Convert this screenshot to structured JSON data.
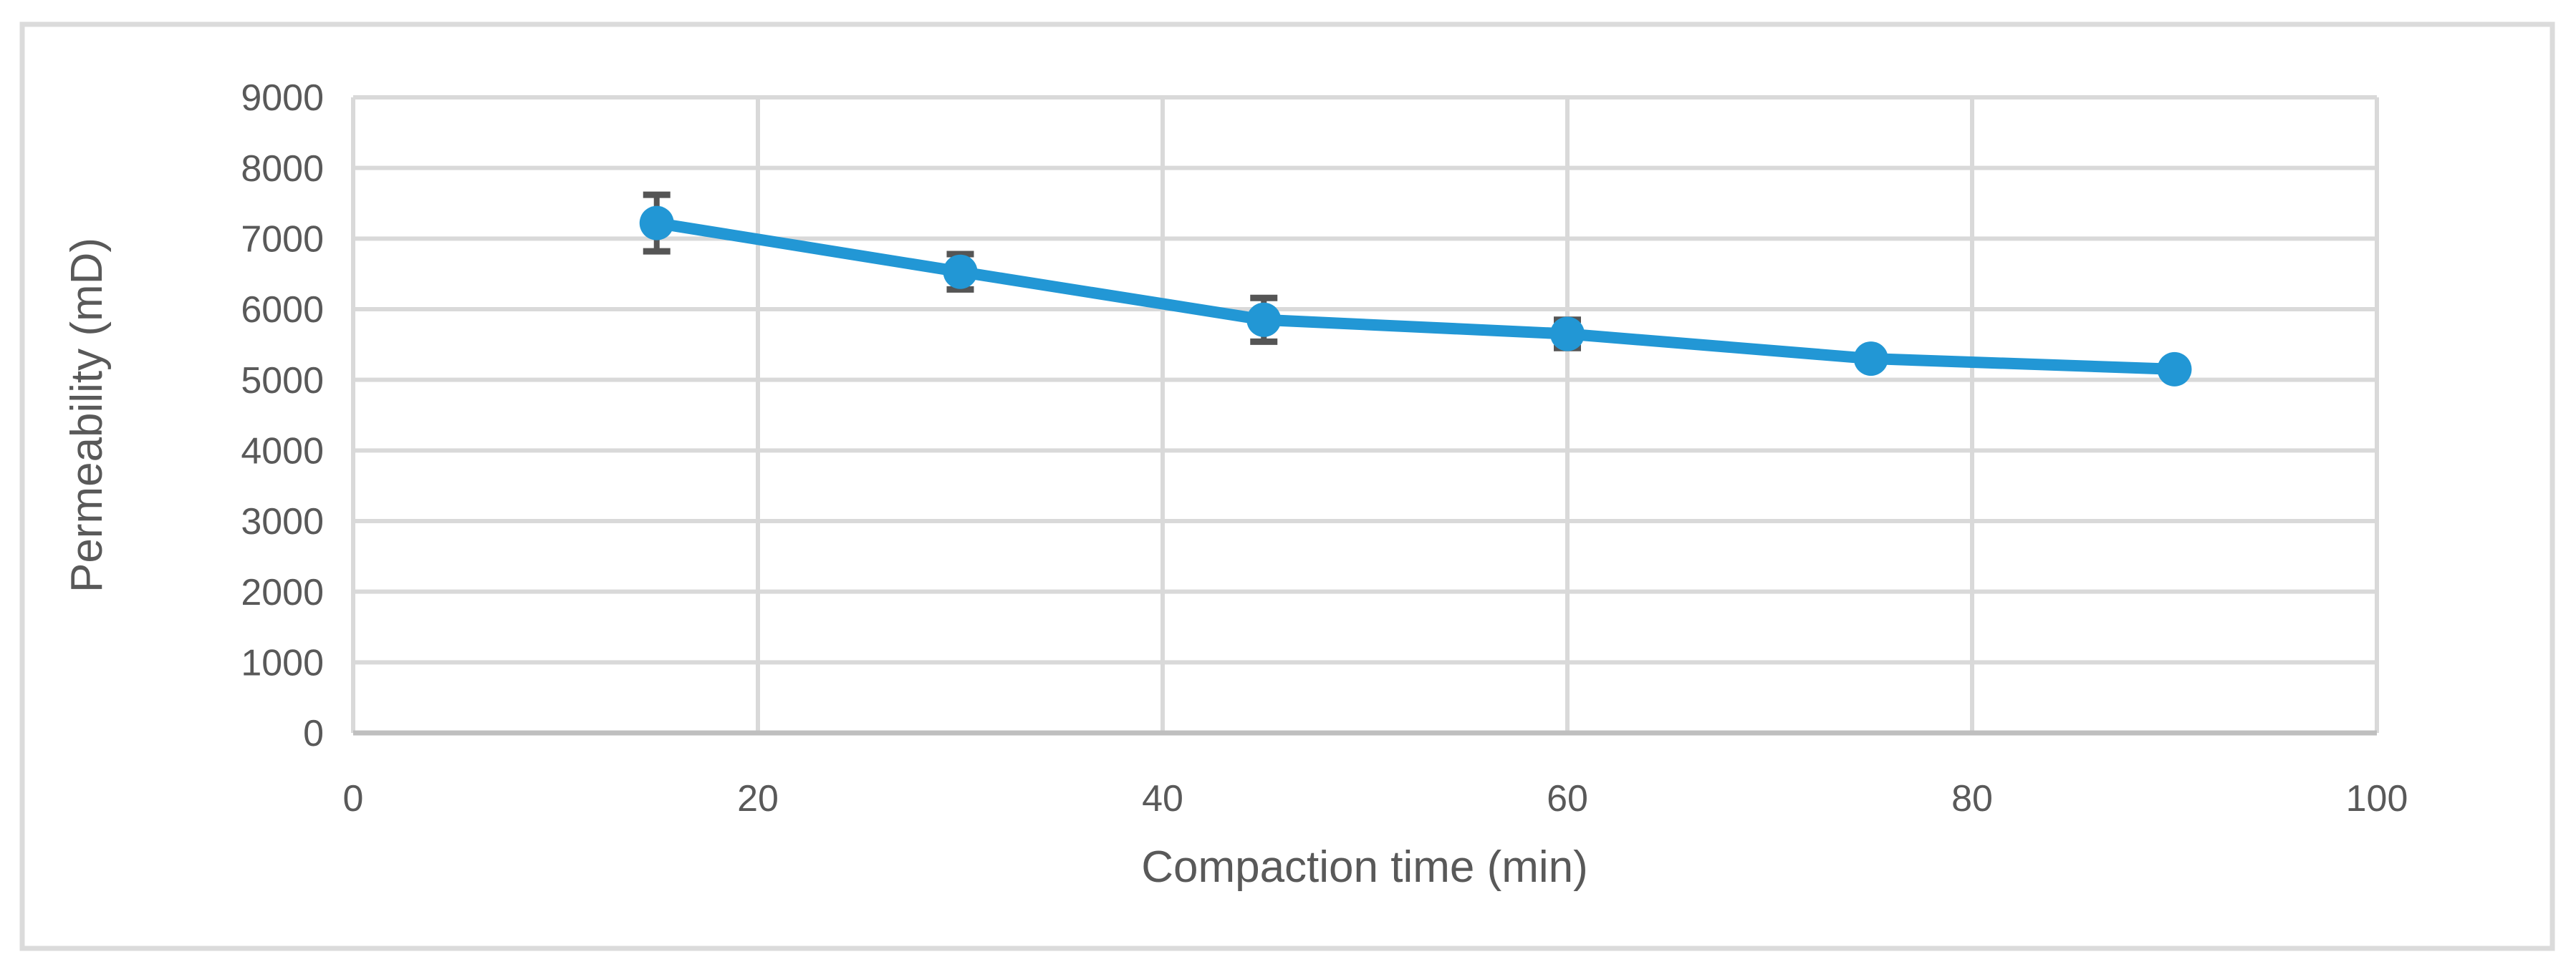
{
  "figure": {
    "background": "#ffffff",
    "border_color": "#dbdbdb"
  },
  "chart_data": {
    "type": "line",
    "title": "",
    "xlabel": "Compaction time (min)",
    "ylabel": "Permeability (mD)",
    "x": [
      15,
      30,
      45,
      60,
      75,
      90
    ],
    "series": [
      {
        "name": "Permeability (mD)",
        "values": [
          7220,
          6530,
          5850,
          5650,
          5300,
          5150
        ],
        "error_bars_plus_minus": [
          400,
          250,
          310,
          200,
          0,
          0
        ],
        "line_color": "#2297d5",
        "marker": "circle",
        "marker_color": "#2297d5",
        "error_bar_color": "#555555"
      }
    ],
    "xlim": [
      0,
      100
    ],
    "ylim": [
      0,
      9000
    ],
    "x_ticks": [
      0,
      20,
      40,
      60,
      80,
      100
    ],
    "y_ticks": [
      0,
      1000,
      2000,
      3000,
      4000,
      5000,
      6000,
      7000,
      8000,
      9000
    ],
    "grid": true,
    "legend": "none",
    "gridline_color": "#d9d9d9",
    "axis_line_color": "#bfbfbf",
    "tick_label_color": "#595959",
    "axis_title_color": "#595959"
  }
}
